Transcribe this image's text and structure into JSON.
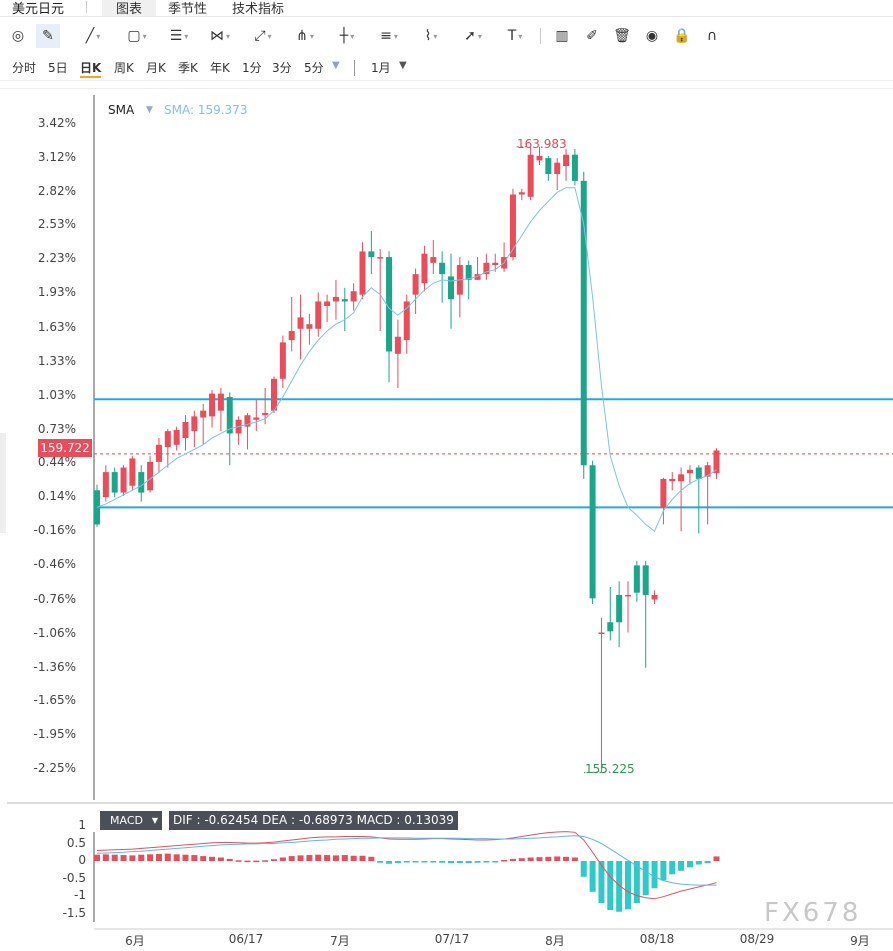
{
  "header": {
    "title": "美元日元",
    "tabs": [
      {
        "label": "图表",
        "active": true
      },
      {
        "label": "季节性",
        "active": false
      },
      {
        "label": "技术指标",
        "active": false
      }
    ]
  },
  "toolbar": {
    "tools": [
      "cursor-circle-icon",
      "pencil-select-icon",
      "line-icon",
      "rectangle-icon",
      "parallel-lines-icon",
      "zigzag-icon",
      "ray-icon",
      "fork-icon",
      "bars-icon",
      "fib-icon",
      "brush-icon",
      "arrow-icon",
      "text-icon",
      "candle-chart-icon",
      "edit-icon",
      "trash-icon",
      "eye-icon",
      "lock-icon",
      "magnet-icon"
    ],
    "text_tool_label": "T"
  },
  "periods": {
    "items": [
      "分时",
      "5日",
      "日K",
      "周K",
      "月K",
      "季K",
      "年K",
      "1分",
      "3分",
      "5分"
    ],
    "active": "日K",
    "range": "1月"
  },
  "colors": {
    "up": "#ea4c5a",
    "down": "#1aa68a",
    "sma": "#7cc3e8",
    "hline": "#23a9e1",
    "macd_pos": "#ea4c5a",
    "macd_neg": "#2ec9c9",
    "dif": "#e05260",
    "dea": "#5fb7e8"
  },
  "sma": {
    "label": "SMA",
    "value": "SMA: 159.373"
  },
  "price_tag": "159.722",
  "y_axis_labels": [
    "3.42%",
    "3.12%",
    "2.82%",
    "2.53%",
    "2.23%",
    "1.93%",
    "1.63%",
    "1.33%",
    "1.03%",
    "0.73%",
    "0.44%",
    "0.14%",
    "-0.16%",
    "-0.46%",
    "-0.76%",
    "-1.06%",
    "-1.36%",
    "-1.65%",
    "-1.95%",
    "-2.25%"
  ],
  "annotations": {
    "high": "163.983",
    "low": "155.225"
  },
  "macd": {
    "label": "MACD",
    "stats": "DIF : -0.62454   DEA : -0.68973   MACD : 0.13039",
    "y_labels": [
      "1",
      "0.5",
      "0",
      "-0.5",
      "-1",
      "-1.5"
    ]
  },
  "x_axis_labels": [
    "6月",
    "06/17",
    "7月",
    "07/17",
    "8月",
    "08/18",
    "08/29",
    "9月"
  ],
  "watermark": "FX678",
  "chart_data": {
    "type": "candlestick",
    "y_axis": "percent change",
    "ylim": [
      -2.45,
      3.55
    ],
    "horizontal_lines": [
      1.0,
      0.05
    ],
    "reference_line": 0.52,
    "candles": [
      [
        0.2,
        -0.1,
        0.25,
        -0.12
      ],
      [
        0.14,
        0.36,
        0.42,
        0.1
      ],
      [
        0.36,
        0.18,
        0.4,
        0.14
      ],
      [
        0.18,
        0.4,
        0.42,
        0.15
      ],
      [
        0.24,
        0.48,
        0.5,
        0.2
      ],
      [
        0.36,
        0.18,
        0.42,
        0.1
      ],
      [
        0.2,
        0.45,
        0.5,
        0.18
      ],
      [
        0.45,
        0.6,
        0.66,
        0.35
      ],
      [
        0.58,
        0.72,
        0.74,
        0.4
      ],
      [
        0.6,
        0.73,
        0.76,
        0.55
      ],
      [
        0.66,
        0.8,
        0.86,
        0.55
      ],
      [
        0.72,
        0.85,
        0.9,
        0.58
      ],
      [
        0.84,
        0.9,
        0.96,
        0.6
      ],
      [
        0.85,
        1.05,
        1.08,
        0.75
      ],
      [
        0.9,
        1.05,
        1.1,
        0.72
      ],
      [
        1.02,
        0.7,
        1.06,
        0.42
      ],
      [
        0.7,
        0.82,
        0.85,
        0.6
      ],
      [
        0.76,
        0.86,
        0.88,
        0.56
      ],
      [
        0.82,
        0.84,
        1.0,
        0.72
      ],
      [
        0.86,
        0.88,
        1.1,
        0.78
      ],
      [
        0.9,
        1.18,
        1.2,
        0.88
      ],
      [
        1.18,
        1.5,
        1.56,
        1.1
      ],
      [
        1.52,
        1.6,
        1.9,
        1.42
      ],
      [
        1.62,
        1.72,
        1.92,
        1.35
      ],
      [
        1.62,
        1.66,
        1.75,
        1.48
      ],
      [
        1.62,
        1.86,
        1.94,
        1.55
      ],
      [
        1.82,
        1.86,
        1.92,
        1.68
      ],
      [
        1.86,
        1.9,
        2.05,
        1.7
      ],
      [
        1.88,
        1.86,
        1.98,
        1.6
      ],
      [
        1.86,
        1.95,
        2.02,
        1.78
      ],
      [
        1.92,
        2.3,
        2.38,
        1.88
      ],
      [
        2.3,
        2.25,
        2.48,
        2.1
      ],
      [
        2.25,
        2.25,
        2.32,
        1.6
      ],
      [
        2.25,
        1.42,
        2.3,
        1.15
      ],
      [
        1.4,
        1.55,
        1.7,
        1.1
      ],
      [
        1.52,
        1.86,
        1.92,
        1.4
      ],
      [
        1.92,
        2.1,
        2.15,
        1.75
      ],
      [
        2.02,
        2.28,
        2.35,
        1.95
      ],
      [
        2.2,
        2.25,
        2.4,
        2.1
      ],
      [
        2.2,
        2.1,
        2.3,
        1.85
      ],
      [
        2.08,
        1.88,
        2.28,
        1.62
      ],
      [
        1.92,
        2.18,
        2.25,
        1.72
      ],
      [
        2.18,
        2.05,
        2.22,
        1.88
      ],
      [
        2.05,
        2.1,
        2.25,
        2.05
      ],
      [
        2.1,
        2.2,
        2.28,
        2.05
      ],
      [
        2.18,
        2.2,
        2.28,
        2.12
      ],
      [
        2.15,
        2.25,
        2.38,
        2.12
      ],
      [
        2.25,
        2.8,
        2.85,
        2.22
      ],
      [
        2.8,
        2.82,
        2.85,
        2.75
      ],
      [
        2.78,
        3.15,
        3.22,
        2.75
      ],
      [
        3.1,
        3.14,
        3.22,
        3.06
      ],
      [
        3.12,
        2.98,
        3.14,
        2.92
      ],
      [
        2.98,
        3.08,
        3.12,
        2.84
      ],
      [
        3.05,
        3.15,
        3.2,
        2.92
      ],
      [
        3.15,
        2.92,
        3.2,
        2.88
      ],
      [
        2.92,
        0.42,
        3.0,
        0.3
      ],
      [
        0.42,
        -0.75,
        0.46,
        -0.8
      ],
      [
        -1.05,
        -1.05,
        -0.92,
        -2.28
      ],
      [
        -0.96,
        -1.04,
        -0.65,
        -1.12
      ],
      [
        -0.72,
        -0.96,
        -0.6,
        -1.18
      ],
      [
        -0.72,
        -0.72,
        -0.6,
        -1.05
      ],
      [
        -0.46,
        -0.7,
        -0.42,
        -0.78
      ],
      [
        -0.46,
        -0.72,
        -0.42,
        -1.36
      ],
      [
        -0.76,
        -0.72,
        -0.68,
        -0.8
      ],
      [
        0.05,
        0.3,
        0.31,
        -0.1
      ],
      [
        0.28,
        0.3,
        0.36,
        0.2
      ],
      [
        0.28,
        0.34,
        0.4,
        -0.16
      ],
      [
        0.35,
        0.38,
        0.42,
        0.25
      ],
      [
        0.4,
        0.3,
        0.42,
        -0.18
      ],
      [
        0.32,
        0.42,
        0.45,
        -0.1
      ],
      [
        0.35,
        0.55,
        0.57,
        0.3
      ]
    ],
    "sma": [
      0.05,
      0.08,
      0.12,
      0.16,
      0.2,
      0.24,
      0.3,
      0.36,
      0.42,
      0.48,
      0.52,
      0.56,
      0.6,
      0.66,
      0.7,
      0.74,
      0.76,
      0.78,
      0.8,
      0.83,
      0.9,
      1.02,
      1.16,
      1.3,
      1.42,
      1.52,
      1.6,
      1.66,
      1.7,
      1.76,
      1.9,
      1.98,
      1.92,
      1.8,
      1.74,
      1.8,
      1.88,
      1.96,
      2.02,
      2.05,
      2.04,
      2.05,
      2.06,
      2.08,
      2.12,
      2.14,
      2.2,
      2.32,
      2.44,
      2.56,
      2.66,
      2.74,
      2.82,
      2.86,
      2.86,
      2.54,
      1.9,
      1.12,
      0.5,
      0.24,
      0.05,
      -0.02,
      -0.1,
      -0.16,
      0.02,
      0.12,
      0.2,
      0.26,
      0.3,
      0.33,
      0.38
    ],
    "macd_hist": [
      0.18,
      0.19,
      0.18,
      0.17,
      0.16,
      0.18,
      0.19,
      0.2,
      0.21,
      0.19,
      0.18,
      0.17,
      0.14,
      0.12,
      0.1,
      0.06,
      0.02,
      0.01,
      0.01,
      0.02,
      0.05,
      0.1,
      0.14,
      0.16,
      0.17,
      0.18,
      0.17,
      0.16,
      0.17,
      0.15,
      0.15,
      0.12,
      -0.05,
      -0.08,
      -0.06,
      -0.04,
      -0.03,
      -0.02,
      -0.03,
      -0.05,
      -0.06,
      -0.06,
      -0.06,
      -0.05,
      -0.04,
      -0.02,
      0.03,
      0.06,
      0.08,
      0.1,
      0.11,
      0.12,
      0.13,
      0.12,
      0.1,
      -0.45,
      -0.88,
      -1.2,
      -1.4,
      -1.45,
      -1.38,
      -1.2,
      -0.98,
      -0.78,
      -0.55,
      -0.38,
      -0.28,
      -0.18,
      -0.1,
      -0.06,
      0.13
    ],
    "dif": [
      0.3,
      0.31,
      0.32,
      0.33,
      0.34,
      0.36,
      0.38,
      0.4,
      0.42,
      0.44,
      0.46,
      0.48,
      0.5,
      0.52,
      0.53,
      0.53,
      0.52,
      0.51,
      0.51,
      0.52,
      0.54,
      0.57,
      0.6,
      0.63,
      0.66,
      0.68,
      0.69,
      0.69,
      0.7,
      0.7,
      0.7,
      0.69,
      0.66,
      0.63,
      0.62,
      0.62,
      0.62,
      0.63,
      0.64,
      0.64,
      0.63,
      0.62,
      0.61,
      0.6,
      0.6,
      0.61,
      0.63,
      0.66,
      0.7,
      0.74,
      0.78,
      0.81,
      0.83,
      0.84,
      0.82,
      0.6,
      0.25,
      -0.12,
      -0.45,
      -0.7,
      -0.88,
      -0.99,
      -1.05,
      -1.08,
      -1.02,
      -0.94,
      -0.86,
      -0.8,
      -0.74,
      -0.68,
      -0.62
    ],
    "dea": [
      0.22,
      0.23,
      0.24,
      0.25,
      0.27,
      0.28,
      0.3,
      0.32,
      0.34,
      0.36,
      0.38,
      0.4,
      0.42,
      0.44,
      0.46,
      0.47,
      0.48,
      0.49,
      0.49,
      0.5,
      0.5,
      0.52,
      0.53,
      0.55,
      0.57,
      0.59,
      0.6,
      0.62,
      0.63,
      0.64,
      0.65,
      0.65,
      0.66,
      0.66,
      0.66,
      0.66,
      0.65,
      0.65,
      0.65,
      0.65,
      0.65,
      0.65,
      0.64,
      0.64,
      0.64,
      0.63,
      0.63,
      0.63,
      0.64,
      0.65,
      0.66,
      0.68,
      0.69,
      0.71,
      0.72,
      0.7,
      0.62,
      0.5,
      0.34,
      0.18,
      0.02,
      -0.14,
      -0.3,
      -0.45,
      -0.56,
      -0.62,
      -0.66,
      -0.68,
      -0.69,
      -0.69,
      -0.69
    ]
  }
}
